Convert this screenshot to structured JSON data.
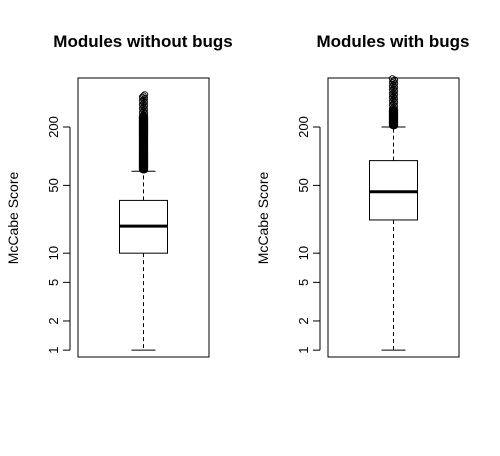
{
  "chart_data": [
    {
      "type": "boxplot",
      "title": "Modules without bugs",
      "ylabel": "McCabe Score",
      "y_scale": "log",
      "ylim": [
        0.85,
        640
      ],
      "yticks": [
        1,
        2,
        5,
        10,
        50,
        200
      ],
      "ytick_labels": [
        "1",
        "2",
        "5",
        "10",
        "50",
        "200"
      ],
      "box": {
        "whisker_low": 1,
        "q1": 10,
        "median": 19,
        "q3": 35,
        "whisker_high": 70
      },
      "outliers": {
        "from": 72,
        "to": 440,
        "dense_to": 260
      }
    },
    {
      "type": "boxplot",
      "title": "Modules with bugs",
      "ylabel": "McCabe Score",
      "y_scale": "log",
      "ylim": [
        0.85,
        640
      ],
      "yticks": [
        1,
        2,
        5,
        10,
        50,
        200
      ],
      "ytick_labels": [
        "1",
        "2",
        "5",
        "10",
        "50",
        "200"
      ],
      "box": {
        "whisker_low": 1,
        "q1": 22,
        "median": 43,
        "q3": 90,
        "whisker_high": 200
      },
      "outliers": {
        "from": 205,
        "to": 640,
        "dense_to": 300
      }
    }
  ]
}
